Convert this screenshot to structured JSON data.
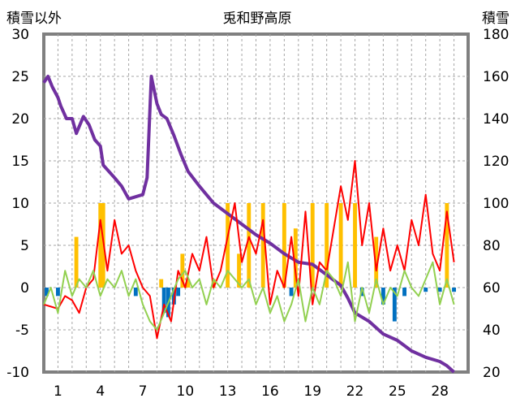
{
  "chart_data": {
    "type": "line",
    "title": "兎和野高原",
    "ylabel_left": "積雪以外",
    "ylabel_right": "積雪",
    "ylim_left": [
      -10,
      30
    ],
    "ylim_right": [
      20,
      180
    ],
    "yticks_left": [
      "30",
      "25",
      "20",
      "15",
      "10",
      "5",
      "0",
      "-5",
      "-10"
    ],
    "yticks_right": [
      "180",
      "160",
      "140",
      "120",
      "100",
      "80",
      "60",
      "40",
      "20"
    ],
    "xlim": [
      0,
      30
    ],
    "xticks": [
      "1",
      "4",
      "7",
      "10",
      "13",
      "16",
      "19",
      "22",
      "25",
      "28"
    ],
    "xtick_positions": [
      1,
      4,
      7,
      10,
      13,
      16,
      19,
      22,
      25,
      28
    ],
    "grid": true,
    "colors": {
      "snow": "#7030a0",
      "red": "#ff0000",
      "green": "#92d050",
      "orange": "#ffc000",
      "blue": "#0070c0",
      "frame": "#808080",
      "grid": "#a6a6a6"
    },
    "series": [
      {
        "axis": "right",
        "color": "#7030a0",
        "x": [
          0,
          0.3,
          0.6,
          1.0,
          1.2,
          1.6,
          2.0,
          2.3,
          2.8,
          3.2,
          3.6,
          4.0,
          4.2,
          4.6,
          5.0,
          5.5,
          6.0,
          6.5,
          7.0,
          7.3,
          7.6,
          8.0,
          8.3,
          8.7,
          9.2,
          9.7,
          10.2,
          11.0,
          12.0,
          13.0,
          14.0,
          15.0,
          16.0,
          17.0,
          18.0,
          19.0,
          20.0,
          21.0,
          21.5,
          22.0,
          23.0,
          24.0,
          25.0,
          26.0,
          27.0,
          28.0,
          28.5,
          29.0
        ],
        "y": [
          157,
          160,
          155,
          150,
          146,
          140,
          140,
          133,
          141,
          137,
          130,
          127,
          118,
          115,
          112,
          108,
          102,
          103,
          104,
          112,
          160,
          147,
          142,
          140,
          132,
          123,
          115,
          108,
          100,
          95,
          90,
          85,
          81,
          76,
          72,
          71,
          66,
          61,
          55,
          48,
          44,
          38,
          35,
          30,
          27,
          25,
          23,
          20
        ]
      },
      {
        "axis": "left",
        "color": "#ff0000",
        "x": [
          0,
          1,
          1.5,
          2,
          2.5,
          3,
          3.5,
          4,
          4.5,
          5,
          5.5,
          6,
          6.5,
          7,
          7.5,
          8,
          8.5,
          9,
          9.5,
          10,
          10.5,
          11,
          11.5,
          12,
          12.5,
          13,
          13.5,
          14,
          14.5,
          15,
          15.5,
          16,
          16.5,
          17,
          17.5,
          18,
          18.5,
          19,
          19.5,
          20,
          20.5,
          21,
          21.5,
          22,
          22.5,
          23,
          23.5,
          24,
          24.5,
          25,
          25.5,
          26,
          26.5,
          27,
          27.5,
          28,
          28.5,
          29
        ],
        "y": [
          -2,
          -2.5,
          -1,
          -1.5,
          -3,
          0,
          1,
          8,
          2,
          8,
          4,
          5,
          2,
          0,
          -1,
          -6,
          -2,
          -4,
          2,
          0,
          4,
          2,
          6,
          0,
          2,
          6,
          10,
          3,
          6,
          4,
          8,
          -2,
          2,
          0,
          6,
          -1,
          9,
          -2,
          3,
          2,
          7,
          12,
          8,
          15,
          5,
          10,
          2,
          7,
          2,
          5,
          2,
          8,
          5,
          11,
          4,
          2,
          9,
          3
        ]
      },
      {
        "axis": "left",
        "color": "#92d050",
        "x": [
          0,
          0.5,
          1,
          1.5,
          2,
          2.5,
          3,
          3.5,
          4,
          4.5,
          5,
          5.5,
          6,
          6.5,
          7,
          7.5,
          8,
          8.5,
          9,
          9.5,
          10,
          10.5,
          11,
          11.5,
          12,
          12.5,
          13,
          13.5,
          14,
          14.5,
          15,
          15.5,
          16,
          16.5,
          17,
          17.5,
          18,
          18.5,
          19,
          19.5,
          20,
          20.5,
          21,
          21.5,
          22,
          22.5,
          23,
          23.5,
          24,
          24.5,
          25,
          25.5,
          26,
          26.5,
          27,
          27.5,
          28,
          28.5,
          29
        ],
        "y": [
          -2,
          0,
          -3,
          2,
          -1,
          1,
          0,
          2,
          -1,
          1,
          0,
          2,
          -1,
          1,
          -2,
          -4,
          -5,
          -3,
          -1,
          1,
          2,
          0,
          1,
          -2,
          1,
          0,
          2,
          1,
          0,
          1,
          -2,
          0,
          -3,
          -1,
          -4,
          -2,
          1,
          -4,
          0,
          -2,
          2,
          1,
          -1,
          3,
          -4,
          0,
          -3,
          1,
          -2,
          0,
          -1,
          2,
          0,
          -1,
          1,
          3,
          -2,
          1,
          -2
        ]
      }
    ],
    "bars": [
      {
        "name": "orange",
        "color": "#ffc000",
        "axis": "left",
        "x": [
          2.3,
          4.0,
          4.2,
          8.3,
          9.8,
          10.2,
          12.0,
          13.0,
          13.8,
          14.5,
          15.5,
          17.0,
          17.8,
          19.0,
          20.0,
          21.0,
          22.0,
          23.5,
          28.5
        ],
        "values": [
          6,
          10,
          10,
          1,
          4,
          1,
          1,
          10,
          4,
          10,
          10,
          10,
          7,
          10,
          10,
          10,
          10,
          6,
          10
        ]
      },
      {
        "name": "blue",
        "color": "#0070c0",
        "axis": "left",
        "x": [
          0.2,
          1.0,
          6.5,
          8.5,
          8.8,
          9.2,
          9.5,
          17.5,
          22.5,
          24.0,
          24.8,
          25.5,
          27.0,
          28.0,
          29.0
        ],
        "values": [
          -1,
          -1,
          -1,
          -3,
          -3.5,
          -2,
          -1,
          -1,
          -1,
          -2,
          -4,
          -1,
          -0.5,
          -0.5,
          -0.5
        ]
      }
    ]
  }
}
